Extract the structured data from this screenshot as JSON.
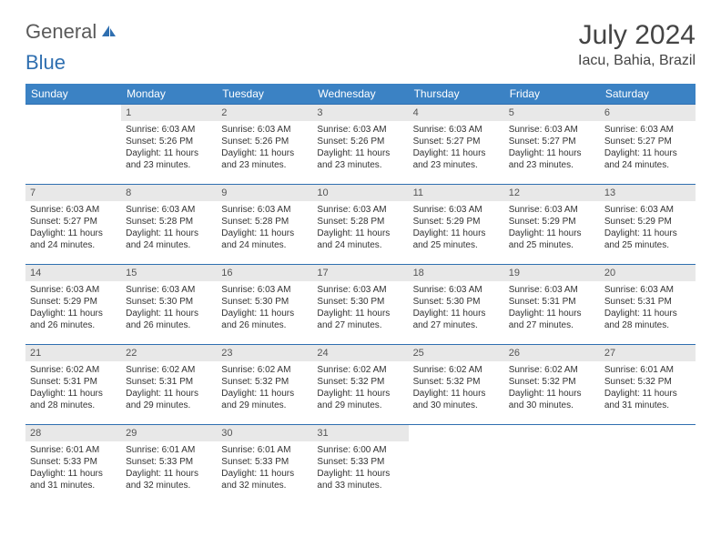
{
  "brand": {
    "part1": "General",
    "part2": "Blue"
  },
  "title": "July 2024",
  "location": "Iacu, Bahia, Brazil",
  "colors": {
    "header_bg": "#3b82c4",
    "header_text": "#ffffff",
    "daynum_bg": "#e8e8e8",
    "daynum_border": "#2f6fb0",
    "text": "#333333",
    "brand_gray": "#5a5a5a",
    "brand_blue": "#2f6fb0"
  },
  "day_headers": [
    "Sunday",
    "Monday",
    "Tuesday",
    "Wednesday",
    "Thursday",
    "Friday",
    "Saturday"
  ],
  "weeks": [
    [
      {
        "empty": true
      },
      {
        "n": "1",
        "sunrise": "Sunrise: 6:03 AM",
        "sunset": "Sunset: 5:26 PM",
        "daylight": "Daylight: 11 hours and 23 minutes."
      },
      {
        "n": "2",
        "sunrise": "Sunrise: 6:03 AM",
        "sunset": "Sunset: 5:26 PM",
        "daylight": "Daylight: 11 hours and 23 minutes."
      },
      {
        "n": "3",
        "sunrise": "Sunrise: 6:03 AM",
        "sunset": "Sunset: 5:26 PM",
        "daylight": "Daylight: 11 hours and 23 minutes."
      },
      {
        "n": "4",
        "sunrise": "Sunrise: 6:03 AM",
        "sunset": "Sunset: 5:27 PM",
        "daylight": "Daylight: 11 hours and 23 minutes."
      },
      {
        "n": "5",
        "sunrise": "Sunrise: 6:03 AM",
        "sunset": "Sunset: 5:27 PM",
        "daylight": "Daylight: 11 hours and 23 minutes."
      },
      {
        "n": "6",
        "sunrise": "Sunrise: 6:03 AM",
        "sunset": "Sunset: 5:27 PM",
        "daylight": "Daylight: 11 hours and 24 minutes."
      }
    ],
    [
      {
        "n": "7",
        "sunrise": "Sunrise: 6:03 AM",
        "sunset": "Sunset: 5:27 PM",
        "daylight": "Daylight: 11 hours and 24 minutes."
      },
      {
        "n": "8",
        "sunrise": "Sunrise: 6:03 AM",
        "sunset": "Sunset: 5:28 PM",
        "daylight": "Daylight: 11 hours and 24 minutes."
      },
      {
        "n": "9",
        "sunrise": "Sunrise: 6:03 AM",
        "sunset": "Sunset: 5:28 PM",
        "daylight": "Daylight: 11 hours and 24 minutes."
      },
      {
        "n": "10",
        "sunrise": "Sunrise: 6:03 AM",
        "sunset": "Sunset: 5:28 PM",
        "daylight": "Daylight: 11 hours and 24 minutes."
      },
      {
        "n": "11",
        "sunrise": "Sunrise: 6:03 AM",
        "sunset": "Sunset: 5:29 PM",
        "daylight": "Daylight: 11 hours and 25 minutes."
      },
      {
        "n": "12",
        "sunrise": "Sunrise: 6:03 AM",
        "sunset": "Sunset: 5:29 PM",
        "daylight": "Daylight: 11 hours and 25 minutes."
      },
      {
        "n": "13",
        "sunrise": "Sunrise: 6:03 AM",
        "sunset": "Sunset: 5:29 PM",
        "daylight": "Daylight: 11 hours and 25 minutes."
      }
    ],
    [
      {
        "n": "14",
        "sunrise": "Sunrise: 6:03 AM",
        "sunset": "Sunset: 5:29 PM",
        "daylight": "Daylight: 11 hours and 26 minutes."
      },
      {
        "n": "15",
        "sunrise": "Sunrise: 6:03 AM",
        "sunset": "Sunset: 5:30 PM",
        "daylight": "Daylight: 11 hours and 26 minutes."
      },
      {
        "n": "16",
        "sunrise": "Sunrise: 6:03 AM",
        "sunset": "Sunset: 5:30 PM",
        "daylight": "Daylight: 11 hours and 26 minutes."
      },
      {
        "n": "17",
        "sunrise": "Sunrise: 6:03 AM",
        "sunset": "Sunset: 5:30 PM",
        "daylight": "Daylight: 11 hours and 27 minutes."
      },
      {
        "n": "18",
        "sunrise": "Sunrise: 6:03 AM",
        "sunset": "Sunset: 5:30 PM",
        "daylight": "Daylight: 11 hours and 27 minutes."
      },
      {
        "n": "19",
        "sunrise": "Sunrise: 6:03 AM",
        "sunset": "Sunset: 5:31 PM",
        "daylight": "Daylight: 11 hours and 27 minutes."
      },
      {
        "n": "20",
        "sunrise": "Sunrise: 6:03 AM",
        "sunset": "Sunset: 5:31 PM",
        "daylight": "Daylight: 11 hours and 28 minutes."
      }
    ],
    [
      {
        "n": "21",
        "sunrise": "Sunrise: 6:02 AM",
        "sunset": "Sunset: 5:31 PM",
        "daylight": "Daylight: 11 hours and 28 minutes."
      },
      {
        "n": "22",
        "sunrise": "Sunrise: 6:02 AM",
        "sunset": "Sunset: 5:31 PM",
        "daylight": "Daylight: 11 hours and 29 minutes."
      },
      {
        "n": "23",
        "sunrise": "Sunrise: 6:02 AM",
        "sunset": "Sunset: 5:32 PM",
        "daylight": "Daylight: 11 hours and 29 minutes."
      },
      {
        "n": "24",
        "sunrise": "Sunrise: 6:02 AM",
        "sunset": "Sunset: 5:32 PM",
        "daylight": "Daylight: 11 hours and 29 minutes."
      },
      {
        "n": "25",
        "sunrise": "Sunrise: 6:02 AM",
        "sunset": "Sunset: 5:32 PM",
        "daylight": "Daylight: 11 hours and 30 minutes."
      },
      {
        "n": "26",
        "sunrise": "Sunrise: 6:02 AM",
        "sunset": "Sunset: 5:32 PM",
        "daylight": "Daylight: 11 hours and 30 minutes."
      },
      {
        "n": "27",
        "sunrise": "Sunrise: 6:01 AM",
        "sunset": "Sunset: 5:32 PM",
        "daylight": "Daylight: 11 hours and 31 minutes."
      }
    ],
    [
      {
        "n": "28",
        "sunrise": "Sunrise: 6:01 AM",
        "sunset": "Sunset: 5:33 PM",
        "daylight": "Daylight: 11 hours and 31 minutes."
      },
      {
        "n": "29",
        "sunrise": "Sunrise: 6:01 AM",
        "sunset": "Sunset: 5:33 PM",
        "daylight": "Daylight: 11 hours and 32 minutes."
      },
      {
        "n": "30",
        "sunrise": "Sunrise: 6:01 AM",
        "sunset": "Sunset: 5:33 PM",
        "daylight": "Daylight: 11 hours and 32 minutes."
      },
      {
        "n": "31",
        "sunrise": "Sunrise: 6:00 AM",
        "sunset": "Sunset: 5:33 PM",
        "daylight": "Daylight: 11 hours and 33 minutes."
      },
      {
        "empty": true
      },
      {
        "empty": true
      },
      {
        "empty": true
      }
    ]
  ]
}
